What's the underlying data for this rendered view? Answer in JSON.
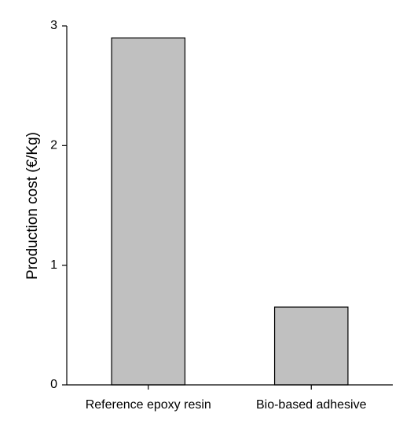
{
  "chart_data": {
    "type": "bar",
    "y_label": "Production cost (€/Kg)",
    "categories": [
      "Reference epoxy resin",
      "Bio-based adhesive"
    ],
    "values": [
      2.9,
      0.65
    ],
    "color": "#c0c0c0",
    "ylim": [
      0,
      3
    ],
    "yticks": [
      0,
      1,
      2,
      3
    ]
  }
}
